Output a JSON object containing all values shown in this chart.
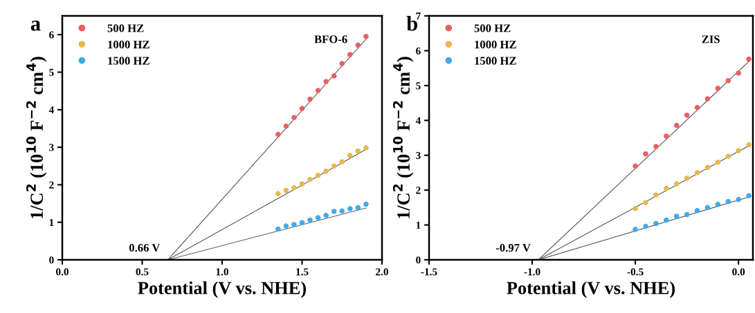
{
  "chart_data": [
    {
      "type": "scatter",
      "xlabel": "Potential (V vs. NHE)",
      "ylabel": "1/C$^{2}$ (10$^{10}$ F$^{−2}$ cm$^{4}$)",
      "xlim": [
        0,
        2
      ],
      "xticks": [
        {
          "value": 0,
          "label": "0.0"
        },
        0.5,
        {
          "value": 1,
          "label": "1.0"
        },
        1.5,
        {
          "value": 2,
          "label": "2.0"
        }
      ],
      "ylim": [
        0,
        6.5
      ],
      "yticks": [
        0,
        1,
        2,
        3,
        4,
        5,
        6
      ],
      "legend": "top left",
      "grid": false,
      "x": [
        1.35,
        1.4,
        1.45,
        1.5,
        1.55,
        1.6,
        1.65,
        1.7,
        1.75,
        1.8,
        1.85,
        1.9
      ],
      "series": [
        {
          "name": "500 HZ",
          "color": "#ec5f62",
          "marker": "circle",
          "values": [
            3.34,
            3.56,
            3.79,
            4.03,
            4.28,
            4.51,
            4.75,
            4.9,
            5.23,
            5.47,
            5.72,
            5.95
          ]
        },
        {
          "name": "1000 HZ",
          "color": "#e9b84c",
          "marker": "circle",
          "values": [
            1.76,
            1.85,
            1.92,
            2.02,
            2.14,
            2.25,
            2.36,
            2.5,
            2.61,
            2.78,
            2.9,
            2.98
          ]
        },
        {
          "name": "1500 HZ",
          "color": "#40aaee",
          "marker": "circle",
          "values": [
            0.82,
            0.9,
            0.94,
            0.99,
            1.06,
            1.12,
            1.18,
            1.29,
            1.3,
            1.36,
            1.39,
            1.48
          ]
        },
        {
          "type": "line",
          "color": "#555555",
          "x": [
            0.66,
            1.9
          ],
          "values": [
            0,
            5.88
          ]
        },
        {
          "type": "line",
          "color": "#555555",
          "x": [
            0.66,
            1.9
          ],
          "values": [
            0,
            2.94
          ]
        },
        {
          "type": "line",
          "color": "#555555",
          "x": [
            0.66,
            1.9
          ],
          "values": [
            0,
            1.38
          ]
        }
      ],
      "annotations": [
        "a",
        "BFO-6",
        {
          "text": "0.66 V",
          "x": 0.66,
          "y": 0
        }
      ]
    },
    {
      "type": "scatter",
      "xlabel": "Potential (V vs. NHE)",
      "ylabel": "1/C$^{2}$ (10$^{10}$ F$^{−2}$ cm$^{4}$)",
      "xlim": [
        -1.5,
        0.07
      ],
      "xticks": [
        {
          "value": -1.5,
          "label": "-1.5"
        },
        {
          "value": -1,
          "label": "-1.0"
        },
        {
          "value": -0.5,
          "label": "-0.5"
        },
        {
          "value": 0,
          "label": "0.0"
        }
      ],
      "ylim": [
        0,
        7
      ],
      "yticks": [
        0,
        1,
        2,
        3,
        4,
        5,
        6,
        7
      ],
      "legend": "top left",
      "grid": false,
      "x": [
        -0.5,
        -0.45,
        -0.4,
        -0.35,
        -0.3,
        -0.25,
        -0.2,
        -0.15,
        -0.1,
        -0.05,
        0,
        0.05
      ],
      "series": [
        {
          "name": "500 HZ",
          "color": "#ec5f62",
          "marker": "circle",
          "values": [
            2.69,
            3.04,
            3.25,
            3.55,
            3.86,
            4.15,
            4.37,
            4.62,
            4.92,
            5.14,
            5.36,
            5.76
          ]
        },
        {
          "name": "1000 HZ",
          "color": "#e9b84c",
          "marker": "circle",
          "values": [
            1.47,
            1.64,
            1.86,
            2.05,
            2.18,
            2.34,
            2.5,
            2.65,
            2.8,
            2.97,
            3.13,
            3.3
          ]
        },
        {
          "name": "1500 HZ",
          "color": "#40aaee",
          "marker": "circle",
          "values": [
            0.87,
            0.96,
            1.04,
            1.14,
            1.25,
            1.3,
            1.41,
            1.5,
            1.59,
            1.67,
            1.73,
            1.84
          ]
        },
        {
          "type": "line",
          "color": "#555555",
          "x": [
            -0.97,
            0.05
          ],
          "values": [
            0,
            5.69
          ]
        },
        {
          "type": "line",
          "color": "#555555",
          "x": [
            -0.97,
            0.05
          ],
          "values": [
            0,
            3.27
          ]
        },
        {
          "type": "line",
          "color": "#555555",
          "x": [
            -0.97,
            0.05
          ],
          "values": [
            0,
            1.8
          ]
        }
      ],
      "annotations": [
        "b",
        "ZIS",
        {
          "text": "-0.97 V",
          "x": -0.97,
          "y": 0
        }
      ]
    }
  ]
}
